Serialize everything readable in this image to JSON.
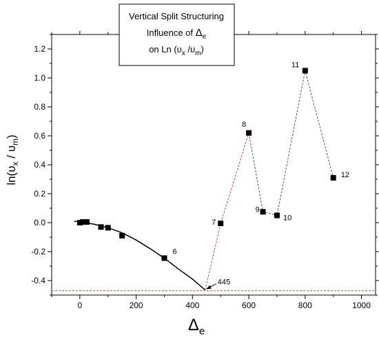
{
  "chart_data": {
    "type": "scatter",
    "title": {
      "line1": "Vertical Split Structuring",
      "line2_prefix": "Influence of ",
      "line2_symbol": "Δ",
      "line2_sub": "e",
      "line3_prefix": "on Ln (",
      "line3_v1": "υ",
      "line3_sub1": "x",
      "line3_mid": " /",
      "line3_v2": "υ",
      "line3_sub2": "m",
      "line3_suffix": ")"
    },
    "xlabel": {
      "symbol": "Δ",
      "sub": "e"
    },
    "ylabel": {
      "prefix": "ln(",
      "v1": "υ",
      "sub1": "x",
      "mid": " / ",
      "v2": "υ",
      "sub2": "m",
      "suffix": ")"
    },
    "xlim": [
      -100,
      1050
    ],
    "ylim": [
      -0.5,
      1.3
    ],
    "x_ticks": [
      0,
      200,
      400,
      600,
      800,
      1000
    ],
    "y_ticks": [
      -0.4,
      -0.2,
      0.0,
      0.2,
      0.4,
      0.6,
      0.8,
      1.0,
      1.2
    ],
    "x_tick_labels": [
      "0",
      "200",
      "400",
      "600",
      "800",
      "1000"
    ],
    "y_tick_labels": [
      "-0.4",
      "-0.2",
      "0.0",
      "0.2",
      "0.4",
      "0.6",
      "0.8",
      "1.0",
      "1.2"
    ],
    "points": [
      {
        "x": 0,
        "y": 0.0,
        "label": ""
      },
      {
        "x": 10,
        "y": 0.005,
        "label": ""
      },
      {
        "x": 20,
        "y": 0.005,
        "label": ""
      },
      {
        "x": 25,
        "y": 0.005,
        "label": ""
      },
      {
        "x": 75,
        "y": -0.03,
        "label": ""
      },
      {
        "x": 100,
        "y": -0.035,
        "label": ""
      },
      {
        "x": 150,
        "y": -0.09,
        "label": ""
      },
      {
        "x": 300,
        "y": -0.245,
        "label": "6"
      },
      {
        "x": 500,
        "y": -0.005,
        "label": "7"
      },
      {
        "x": 600,
        "y": 0.62,
        "label": "8"
      },
      {
        "x": 650,
        "y": 0.075,
        "label": "9"
      },
      {
        "x": 700,
        "y": 0.05,
        "label": "10"
      },
      {
        "x": 800,
        "y": 1.05,
        "label": "11"
      },
      {
        "x": 900,
        "y": 0.31,
        "label": "12"
      }
    ],
    "fit_curve": {
      "x": [
        -20,
        0,
        50,
        100,
        150,
        200,
        250,
        300,
        350,
        400,
        445
      ],
      "y": [
        0.01,
        0.005,
        -0.01,
        -0.035,
        -0.07,
        -0.12,
        -0.18,
        -0.245,
        -0.32,
        -0.39,
        -0.465
      ]
    },
    "red_dashed_path": {
      "x": [
        445,
        500,
        600
      ],
      "y": [
        -0.465,
        -0.005,
        0.62
      ]
    },
    "black_dashed_path": {
      "x": [
        600,
        650,
        700,
        800,
        900
      ],
      "y": [
        0.62,
        0.075,
        0.05,
        1.05,
        0.31
      ]
    },
    "baseline": {
      "y": -0.47
    },
    "minimum_annotation": {
      "x": 445,
      "y": -0.465,
      "label": "445"
    },
    "colors": {
      "fit": "#000000",
      "red_dashed": "#e8403a",
      "black_dashed": "#555555",
      "baseline": "#e8403a",
      "marker": "#000000"
    },
    "grid": false,
    "legend": "none"
  }
}
